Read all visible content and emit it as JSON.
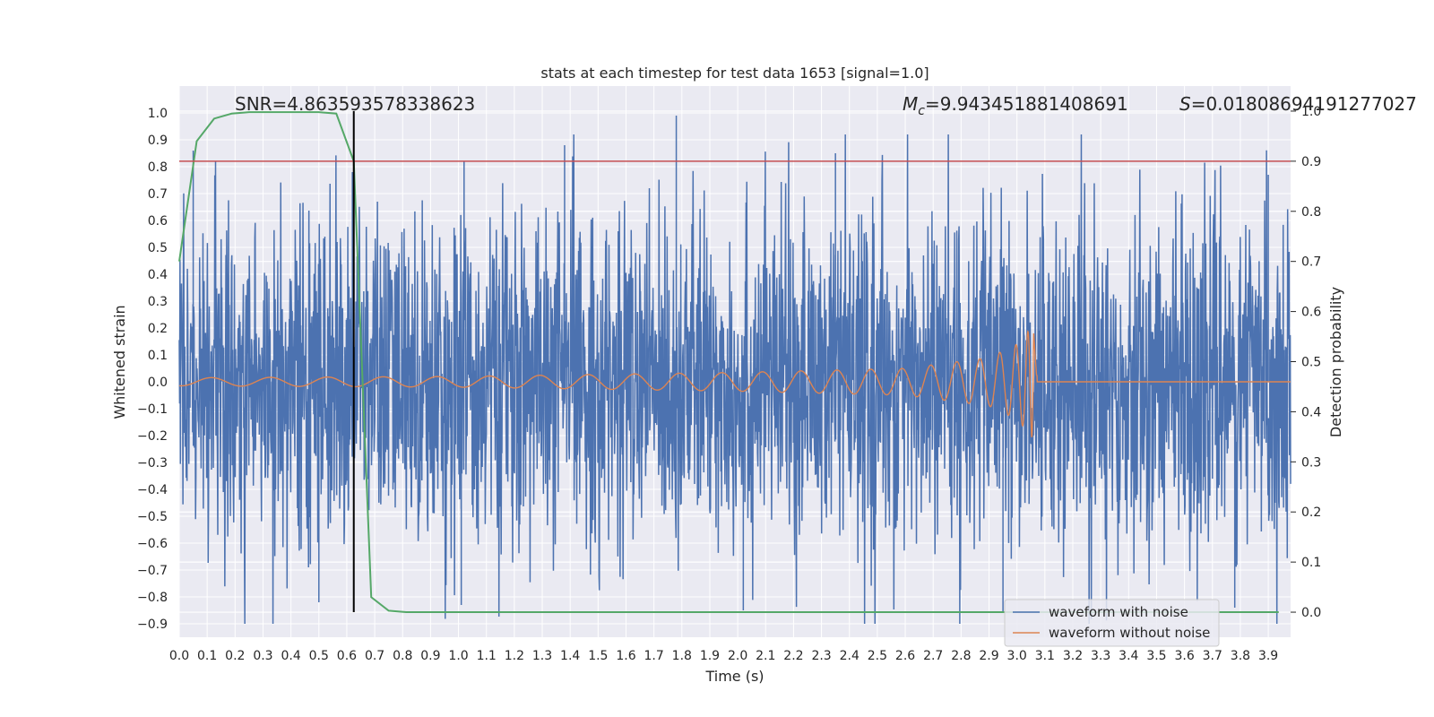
{
  "colors": {
    "background": "#eaeaf2",
    "grid": "#ffffff",
    "noise": "#4c72b0",
    "clean": "#dd8452",
    "prob": "#55a868",
    "threshold": "#c44e52",
    "marker": "#000000"
  },
  "chart_data": {
    "type": "line",
    "title": "stats at each timestep for test data 1653 [signal=1.0]",
    "xlabel": "Time (s)",
    "ylabel": "Whitened strain",
    "y2label": "Detection probability",
    "xlim": [
      0.0,
      3.98
    ],
    "ylim": [
      -0.95,
      1.1
    ],
    "y2lim": [
      -0.05,
      1.05
    ],
    "x_ticks": [
      "0.0",
      "0.1",
      "0.2",
      "0.3",
      "0.4",
      "0.5",
      "0.6",
      "0.7",
      "0.8",
      "0.9",
      "1.0",
      "1.1",
      "1.2",
      "1.3",
      "1.4",
      "1.5",
      "1.6",
      "1.7",
      "1.8",
      "1.9",
      "2.0",
      "2.1",
      "2.2",
      "2.3",
      "2.4",
      "2.5",
      "2.6",
      "2.7",
      "2.8",
      "2.9",
      "3.0",
      "3.1",
      "3.2",
      "3.3",
      "3.4",
      "3.5",
      "3.6",
      "3.7",
      "3.8",
      "3.9"
    ],
    "y_ticks": [
      "1.0",
      "0.9",
      "0.8",
      "0.7",
      "0.6",
      "0.5",
      "0.4",
      "0.3",
      "0.2",
      "0.1",
      "0.0",
      "-0.1",
      "-0.2",
      "-0.3",
      "-0.4",
      "-0.5",
      "-0.6",
      "-0.7",
      "-0.8",
      "-0.9"
    ],
    "y2_ticks": [
      "1.0",
      "0.9",
      "0.8",
      "0.7",
      "0.6",
      "0.5",
      "0.4",
      "0.3",
      "0.2",
      "0.1",
      "0.0"
    ],
    "annotations": {
      "snr": "SNR=4.863593578338623",
      "mc_symbol": "M",
      "mc_sub": "c",
      "mc_value": "=9.943451881408691",
      "s_symbol": "S",
      "s_value": "=0.01808694191277027"
    },
    "threshold_probability": 0.9,
    "marker_time": 0.625,
    "series": [
      {
        "name": "waveform with noise",
        "axis": "left",
        "description": "whitened strain with noise, ~4096 Hz, amplitude mostly within ±0.7 with spikes to ~1.0 at t≈1.8",
        "noise_std": 0.3,
        "notable_peaks": [
          [
            0.05,
            0.86
          ],
          [
            0.62,
            0.78
          ],
          [
            1.02,
            0.82
          ],
          [
            1.38,
            0.88
          ],
          [
            1.78,
            0.99
          ],
          [
            2.35,
            0.85
          ],
          [
            3.9,
            0.77
          ]
        ],
        "notable_troughs": [
          [
            0.5,
            -0.82
          ],
          [
            1.01,
            -0.83
          ],
          [
            2.02,
            -0.85
          ],
          [
            2.95,
            -0.86
          ],
          [
            3.78,
            -0.84
          ]
        ]
      },
      {
        "name": "waveform without noise",
        "axis": "left",
        "description": "chirp signal increasing in frequency and amplitude until merger at ~3.06 s",
        "merger_time": 3.06,
        "amplitude_points": [
          [
            0.0,
            0.015
          ],
          [
            1.0,
            0.02
          ],
          [
            2.0,
            0.035
          ],
          [
            2.6,
            0.05
          ],
          [
            2.9,
            0.09
          ],
          [
            3.0,
            0.14
          ],
          [
            3.05,
            0.2
          ],
          [
            3.06,
            0.22
          ],
          [
            3.07,
            0.03
          ],
          [
            3.1,
            0.0
          ]
        ]
      },
      {
        "name": "detection probability",
        "axis": "right",
        "x": [
          0.0,
          0.0625,
          0.125,
          0.1875,
          0.25,
          0.3125,
          0.375,
          0.4375,
          0.5,
          0.5625,
          0.625,
          0.6875,
          0.75,
          0.8125,
          1.0,
          2.0,
          3.0,
          3.9375
        ],
        "values": [
          0.7,
          0.94,
          0.985,
          0.995,
          0.998,
          0.998,
          0.998,
          0.998,
          0.998,
          0.995,
          0.9,
          0.03,
          0.003,
          0.0,
          0.0,
          0.0,
          0.0,
          0.0
        ]
      }
    ],
    "legend": {
      "placement": "lower-right",
      "entries": [
        {
          "label": "waveform with noise",
          "color": "#4c72b0"
        },
        {
          "label": "waveform without noise",
          "color": "#dd8452"
        }
      ]
    }
  }
}
